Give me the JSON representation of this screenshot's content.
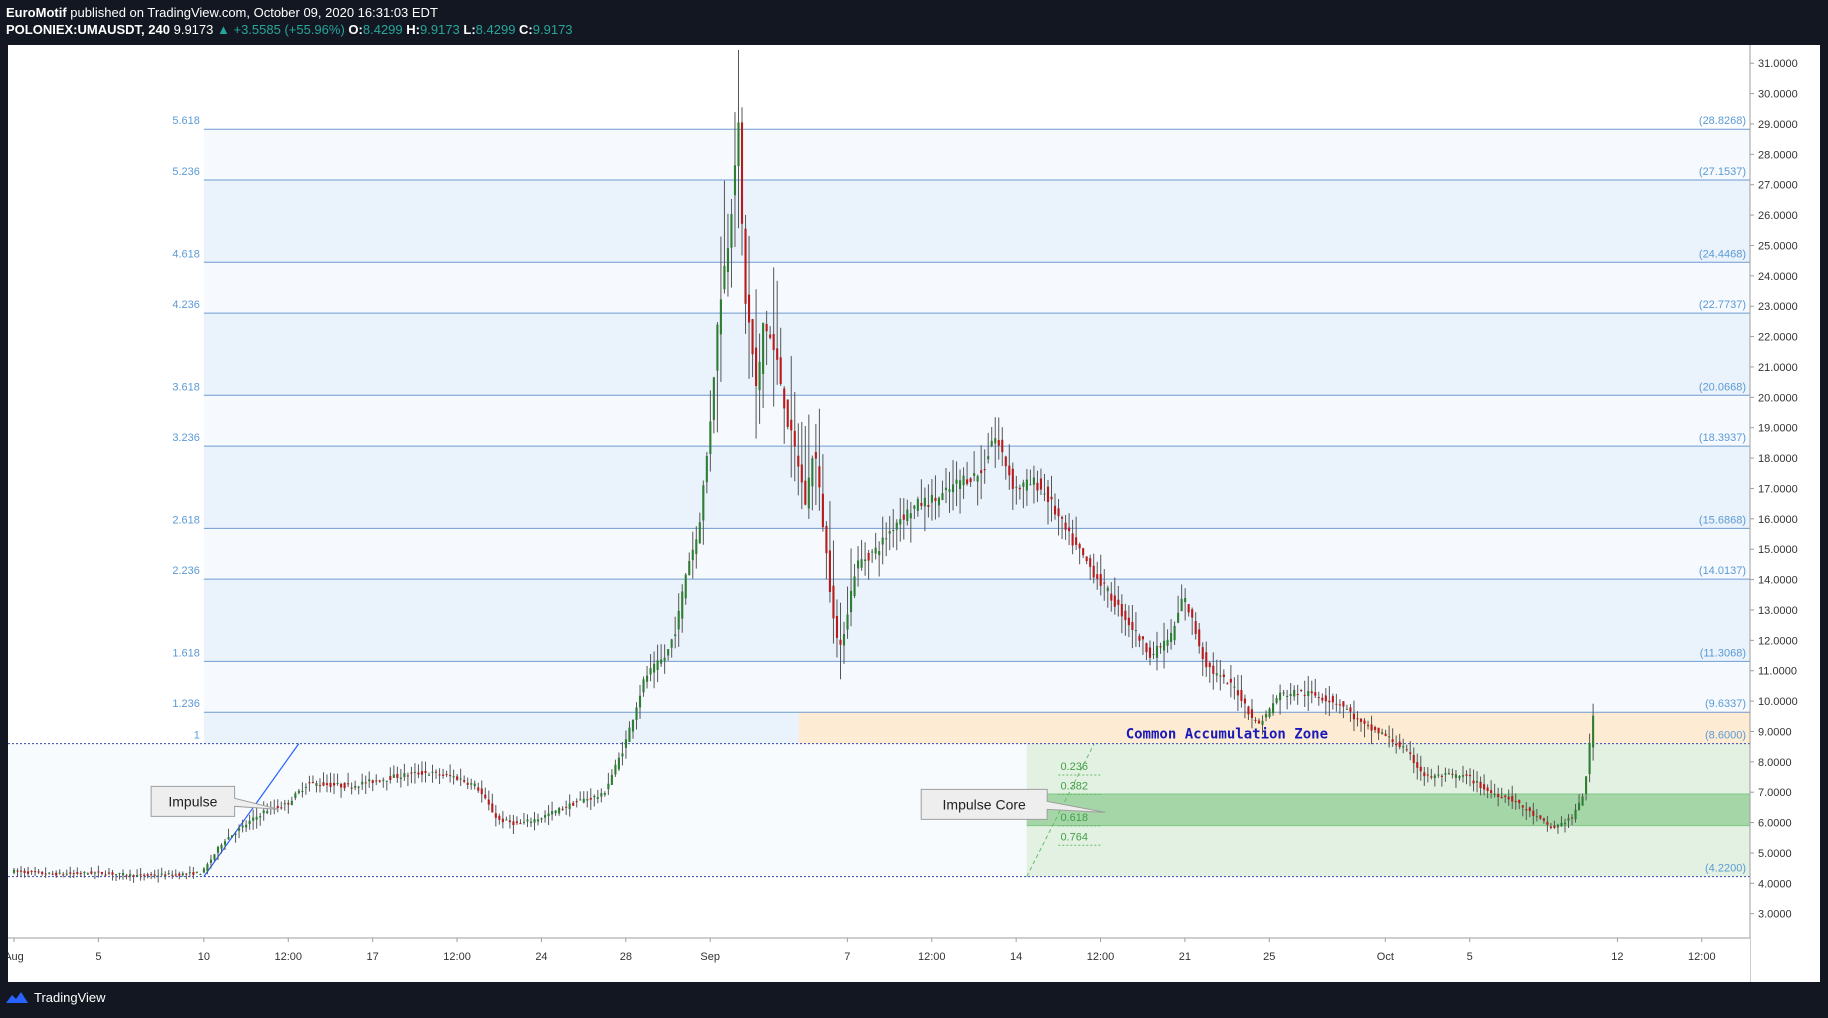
{
  "header": {
    "author": "EuroMotif",
    "published_text": "published on TradingView.com, October 09, 2020 16:31:03 EDT",
    "symbol": "POLONIEX:UMAUSDT, 240",
    "last": "9.9173",
    "change": "▲ +3.5585 (+55.96%)",
    "o_label": "O:",
    "o_value": "8.4299",
    "h_label": "H:",
    "h_value": "9.9173",
    "l_label": "L:",
    "l_value": "8.4299",
    "c_label": "C:",
    "c_value": "9.9173"
  },
  "footer": {
    "brand": "TradingView",
    "logo_icon": "tradingview-logo-icon"
  },
  "colors": {
    "up": "#2e7d32",
    "down": "#b71c1c",
    "fib_line": "#6f9bd1",
    "fib_text": "#5b9bd5",
    "zone": "#fdebd3",
    "zone_text": "#1a1ab8",
    "core": "#c8e6c9",
    "core_dark": "#a5d6a7"
  },
  "chart_data": {
    "type": "candlestick",
    "symbol": "POLONIEX:UMAUSDT",
    "interval": "240",
    "ylim": [
      2.2,
      31.6
    ],
    "y_ticks": [
      "31.0000",
      "30.0000",
      "29.0000",
      "28.0000",
      "27.0000",
      "26.0000",
      "25.0000",
      "24.0000",
      "23.0000",
      "22.0000",
      "21.0000",
      "20.0000",
      "19.0000",
      "18.0000",
      "17.0000",
      "16.0000",
      "15.0000",
      "14.0000",
      "13.0000",
      "12.0000",
      "11.0000",
      "10.0000",
      "9.0000",
      "8.0000",
      "7.0000",
      "6.0000",
      "5.0000",
      "4.0000",
      "3.0000"
    ],
    "x_ticks": [
      {
        "label": "Aug",
        "day": 0
      },
      {
        "label": "5",
        "day": 4
      },
      {
        "label": "10",
        "day": 9
      },
      {
        "label": "12:00",
        "day": 13
      },
      {
        "label": "17",
        "day": 17
      },
      {
        "label": "12:00",
        "day": 21
      },
      {
        "label": "24",
        "day": 25
      },
      {
        "label": "28",
        "day": 29
      },
      {
        "label": "Sep",
        "day": 33
      },
      {
        "label": "7",
        "day": 39.5
      },
      {
        "label": "12:00",
        "day": 43.5
      },
      {
        "label": "14",
        "day": 47.5
      },
      {
        "label": "12:00",
        "day": 51.5
      },
      {
        "label": "21",
        "day": 55.5
      },
      {
        "label": "25",
        "day": 59.5
      },
      {
        "label": "Oct",
        "day": 65
      },
      {
        "label": "5",
        "day": 69
      },
      {
        "label": "12",
        "day": 76
      },
      {
        "label": "12:00",
        "day": 80
      }
    ],
    "price_path": [
      [
        0,
        4.4
      ],
      [
        2,
        4.3
      ],
      [
        4,
        4.35
      ],
      [
        6,
        4.25
      ],
      [
        8,
        4.3
      ],
      [
        9,
        4.35
      ],
      [
        10,
        5.4
      ],
      [
        11,
        5.9
      ],
      [
        12,
        6.4
      ],
      [
        13,
        6.6
      ],
      [
        14,
        7.3
      ],
      [
        16,
        7.2
      ],
      [
        18,
        7.5
      ],
      [
        19.5,
        7.65
      ],
      [
        21,
        7.5
      ],
      [
        22,
        7.2
      ],
      [
        23,
        6.1
      ],
      [
        24,
        5.95
      ],
      [
        25,
        6.15
      ],
      [
        27,
        6.75
      ],
      [
        28,
        6.9
      ],
      [
        29,
        8.5
      ],
      [
        30,
        10.8
      ],
      [
        31,
        11.5
      ],
      [
        31.5,
        12.5
      ],
      [
        32,
        14.5
      ],
      [
        32.5,
        15.5
      ],
      [
        33,
        18.5
      ],
      [
        33.5,
        23
      ],
      [
        34,
        25.5
      ],
      [
        34.4,
        29.2
      ],
      [
        34.7,
        23.5
      ],
      [
        35,
        22
      ],
      [
        35.3,
        20
      ],
      [
        35.6,
        22.5
      ],
      [
        35.9,
        22
      ],
      [
        36.3,
        21
      ],
      [
        36.8,
        19
      ],
      [
        37.2,
        18
      ],
      [
        37.6,
        16.5
      ],
      [
        38,
        18.5
      ],
      [
        38.4,
        16
      ],
      [
        38.8,
        13.5
      ],
      [
        39.2,
        11.5
      ],
      [
        39.6,
        13
      ],
      [
        40,
        14.5
      ],
      [
        41,
        15
      ],
      [
        42,
        16
      ],
      [
        43,
        16.5
      ],
      [
        44,
        16.7
      ],
      [
        45,
        17.3
      ],
      [
        46,
        17.5
      ],
      [
        46.5,
        18.8
      ],
      [
        47,
        18
      ],
      [
        47.5,
        17
      ],
      [
        48.5,
        17.2
      ],
      [
        49,
        16.8
      ],
      [
        50,
        15.5
      ],
      [
        51,
        14.5
      ],
      [
        52,
        13.5
      ],
      [
        53,
        12.5
      ],
      [
        54,
        11.5
      ],
      [
        55,
        12.2
      ],
      [
        55.5,
        13.5
      ],
      [
        56,
        12.5
      ],
      [
        56.5,
        11.3
      ],
      [
        57,
        10.9
      ],
      [
        58,
        10.4
      ],
      [
        59,
        9.2
      ],
      [
        59.5,
        9.6
      ],
      [
        60,
        10.2
      ],
      [
        61,
        10.3
      ],
      [
        62,
        10.15
      ],
      [
        63,
        9.9
      ],
      [
        64,
        9.2
      ],
      [
        65,
        8.9
      ],
      [
        66,
        8.4
      ],
      [
        67,
        7.5
      ],
      [
        68,
        7.55
      ],
      [
        69,
        7.5
      ],
      [
        70,
        7.0
      ],
      [
        71,
        6.8
      ],
      [
        72,
        6.3
      ],
      [
        73,
        5.8
      ],
      [
        74,
        6.2
      ],
      [
        74.5,
        7.0
      ],
      [
        75,
        9.9
      ]
    ],
    "fib_levels": [
      {
        "ratio": "1",
        "price": 8.6,
        "label": "(8.6000)"
      },
      {
        "ratio": "1.236",
        "price": 9.6337,
        "label": "(9.6337)"
      },
      {
        "ratio": "1.618",
        "price": 11.3068,
        "label": "(11.3068)"
      },
      {
        "ratio": "2.236",
        "price": 14.0137,
        "label": "(14.0137)"
      },
      {
        "ratio": "2.618",
        "price": 15.6868,
        "label": "(15.6868)"
      },
      {
        "ratio": "3.236",
        "price": 18.3937,
        "label": "(18.3937)"
      },
      {
        "ratio": "3.618",
        "price": 20.0668,
        "label": "(20.0668)"
      },
      {
        "ratio": "4.236",
        "price": 22.7737,
        "label": "(22.7737)"
      },
      {
        "ratio": "4.618",
        "price": 24.4468,
        "label": "(24.4468)"
      },
      {
        "ratio": "5.236",
        "price": 27.1537,
        "label": "(27.1537)"
      },
      {
        "ratio": "5.618",
        "price": 28.8268,
        "label": "(28.8268)"
      }
    ],
    "fib_base": {
      "price": 4.22,
      "label": "(4.2200)"
    },
    "fib_start_day": 9,
    "impulse_line": {
      "from": [
        9,
        4.22
      ],
      "to": [
        13.5,
        8.6
      ]
    },
    "accumulation_zone": {
      "label": "Common Accumulation Zone",
      "from_day": 37.2,
      "low": 8.6,
      "high": 9.6337
    },
    "impulse_core": {
      "label": "Impulse Core",
      "from_day": 48,
      "top": 8.6,
      "bottom": 4.22,
      "dark_low": 5.9,
      "dark_high": 6.94,
      "retracements": [
        {
          "ratio": "0.236",
          "price": 7.567
        },
        {
          "ratio": "0.382",
          "price": 6.927
        },
        {
          "ratio": "0.618",
          "price": 5.893
        },
        {
          "ratio": "0.764",
          "price": 5.253
        }
      ]
    },
    "callouts": [
      {
        "label": "Impulse",
        "day": 6.5,
        "price": 6.7
      },
      {
        "label": "Impulse Core",
        "day": 43,
        "price": 6.6
      }
    ]
  }
}
